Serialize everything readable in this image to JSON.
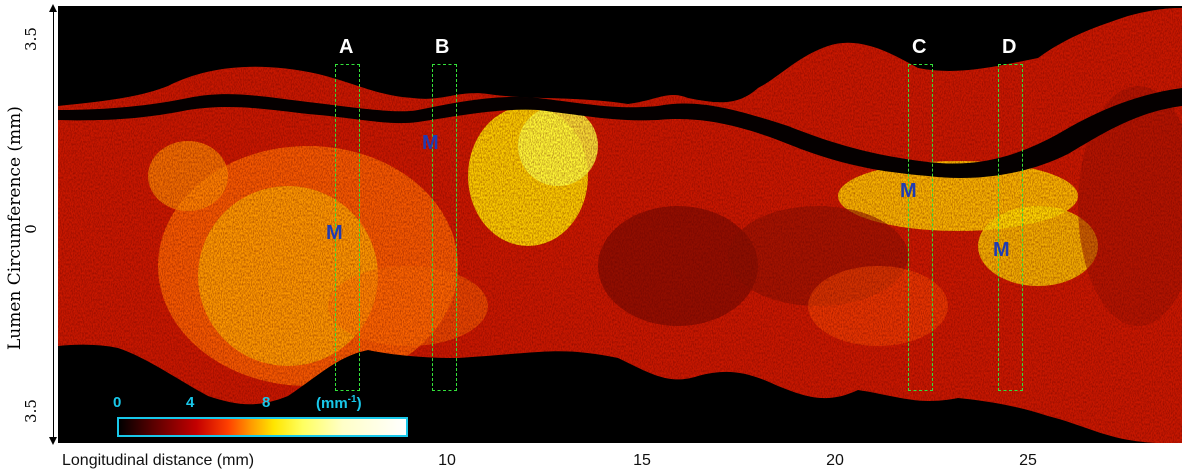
{
  "y_axis": {
    "title": "Lumen Circumference (mm)",
    "tick_top": "3.5",
    "tick_mid": "0",
    "tick_bottom": "3.5"
  },
  "x_axis": {
    "title": "Longitudinal distance (mm)",
    "ticks": [
      "10",
      "15",
      "20",
      "25"
    ]
  },
  "sections": [
    "A",
    "B",
    "C",
    "D"
  ],
  "markers": [
    "M",
    "M",
    "M",
    "M"
  ],
  "colorbar": {
    "ticks": [
      "0",
      "4",
      "8"
    ],
    "unit": "(mm",
    "unit_sup": "-1",
    "unit_close": ")",
    "range_mm_inv": [
      0,
      10
    ]
  },
  "colors": {
    "rect_outline": "#33e23a",
    "marker_text": "#1f3bb3",
    "colorbar_text": "#19c8ea",
    "background": "#000000"
  }
}
